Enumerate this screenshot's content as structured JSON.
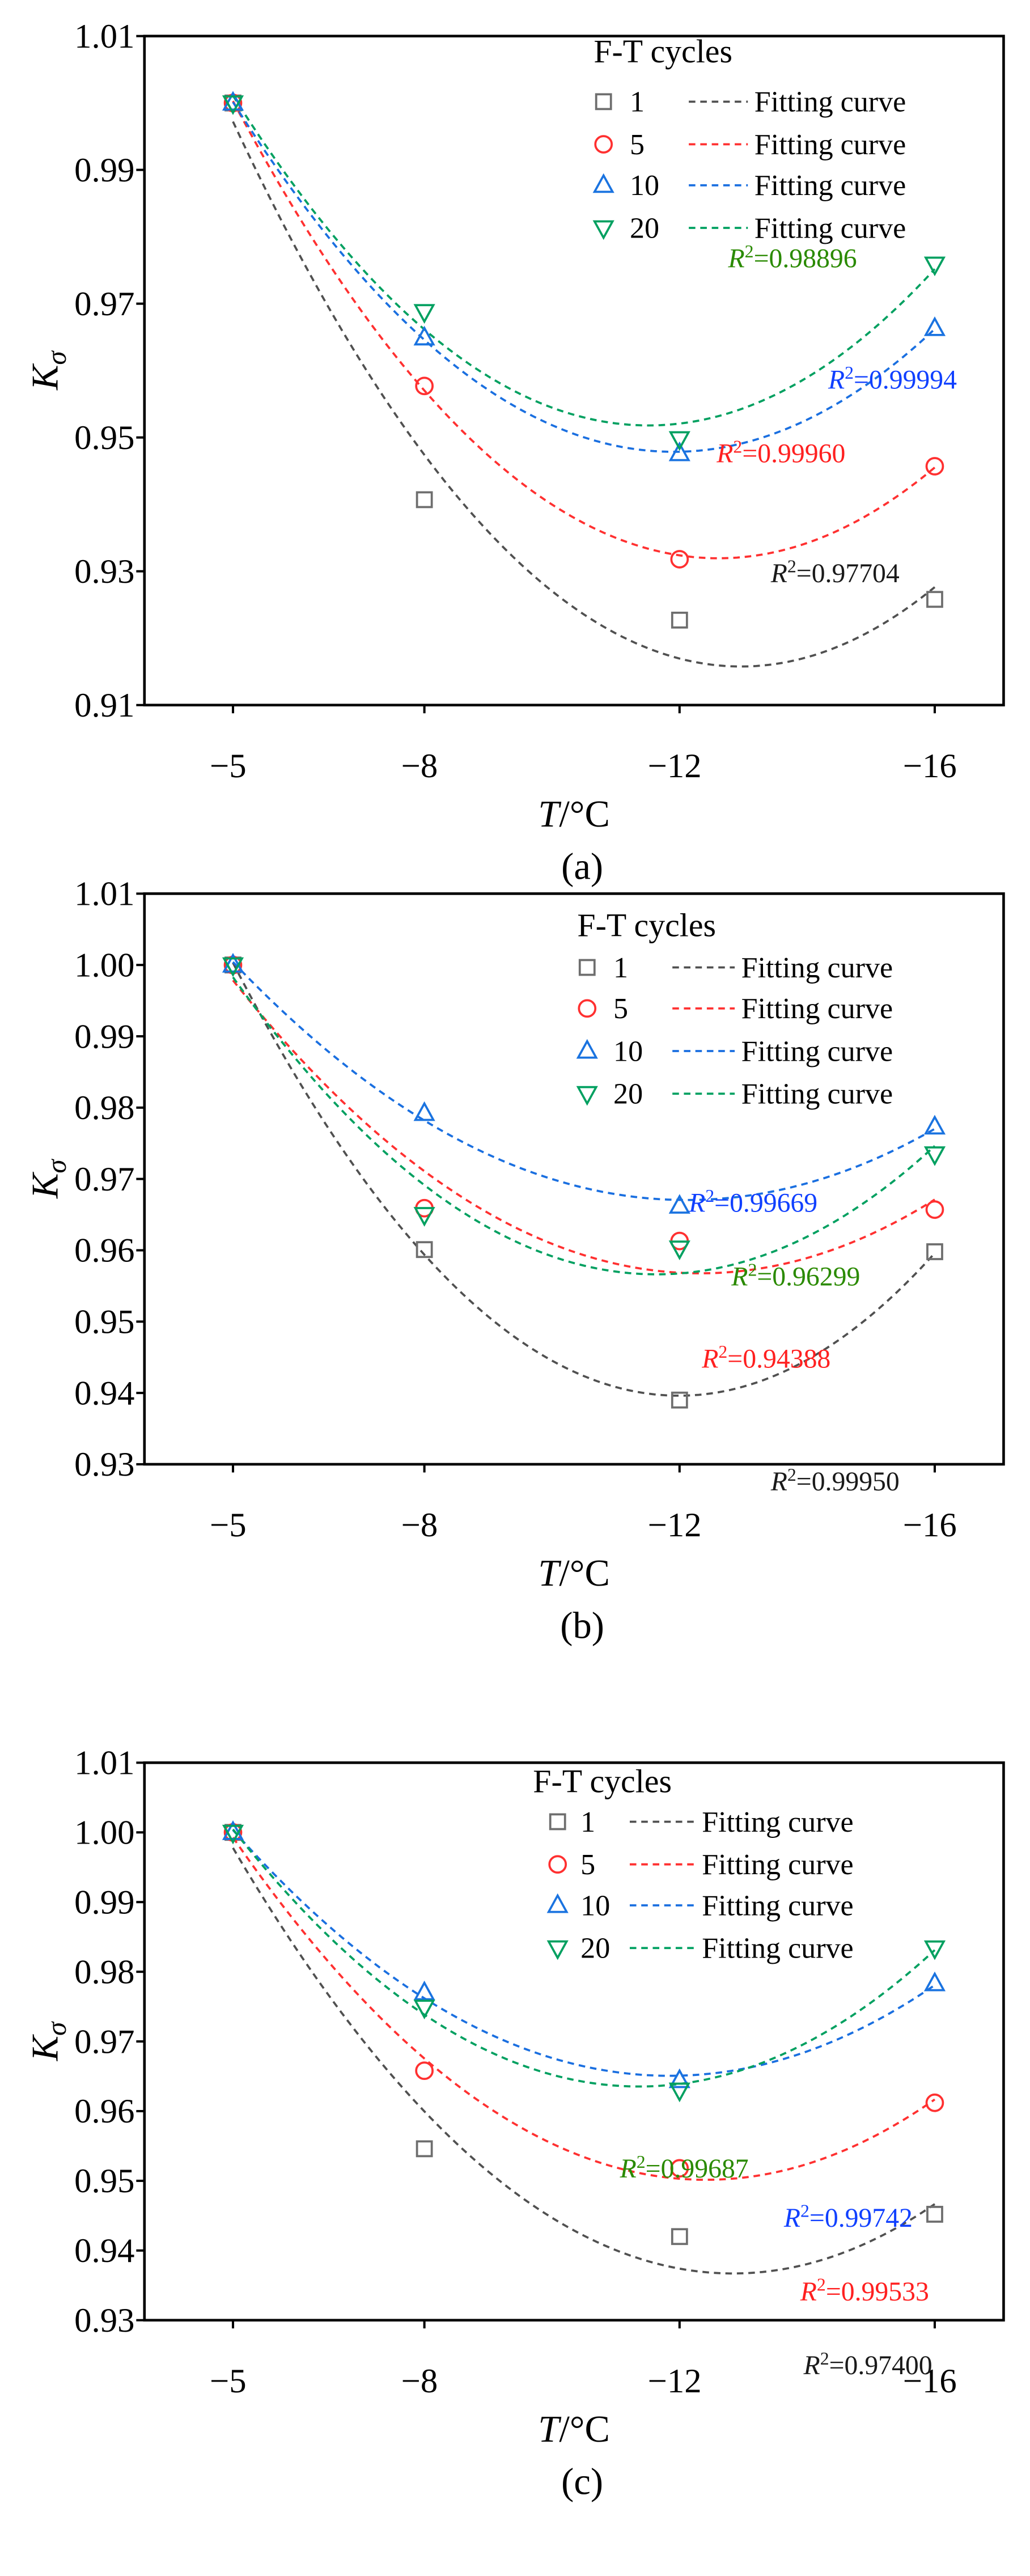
{
  "chart_data": [
    {
      "type": "scatter",
      "caption": "(a)",
      "xlabel_italic": "T",
      "xlabel_unit": "/°C",
      "ylabel_main": "K",
      "ylabel_sub": "σ",
      "x": [
        -5,
        -8,
        -12,
        -16
      ],
      "xtick_labels": [
        "−5",
        "−8",
        "−12",
        "−16"
      ],
      "ylim": [
        0.91,
        1.01
      ],
      "yticks": [
        0.91,
        0.93,
        0.95,
        0.97,
        0.99,
        1.01
      ],
      "ytick_labels": [
        "0.91",
        "0.93",
        "0.95",
        "0.97",
        "0.99",
        "1.01"
      ],
      "legend_title": "F-T cycles",
      "legend_placement": "top-right",
      "r2_symbol": "R",
      "r2_exp": "2",
      "series": [
        {
          "name": "1",
          "marker": "square",
          "fit_label": "Fitting curve",
          "values": [
            1.0,
            0.9407,
            0.9227,
            0.9258
          ],
          "r2": "=0.97704",
          "color": "#6e6e6e",
          "line_color": "#505050",
          "text_color": "#1a1a1a"
        },
        {
          "name": "5",
          "marker": "circle",
          "fit_label": "Fitting curve",
          "values": [
            1.0,
            0.9577,
            0.9318,
            0.9457
          ],
          "r2": "=0.99960",
          "color": "#ff3030",
          "line_color": "#ff3030",
          "text_color": "#ff2020"
        },
        {
          "name": "10",
          "marker": "triangle-up",
          "fit_label": "Fitting curve",
          "values": [
            1.0,
            0.9649,
            0.9476,
            0.9663
          ],
          "r2": "=0.99994",
          "color": "#1a73e0",
          "line_color": "#1a6fe0",
          "text_color": "#1040ff"
        },
        {
          "name": "20",
          "marker": "triangle-down",
          "fit_label": "Fitting curve",
          "values": [
            1.0,
            0.9688,
            0.9498,
            0.9759
          ],
          "r2": "=0.98896",
          "color": "#00a060",
          "line_color": "#00a060",
          "text_color": "#2a8a00"
        }
      ]
    },
    {
      "type": "scatter",
      "caption": "(b)",
      "xlabel_italic": "T",
      "xlabel_unit": "/°C",
      "ylabel_main": "K",
      "ylabel_sub": "σ",
      "x": [
        -5,
        -8,
        -12,
        -16
      ],
      "xtick_labels": [
        "−5",
        "−8",
        "−12",
        "−16"
      ],
      "ylim": [
        0.93,
        1.01
      ],
      "yticks": [
        0.93,
        0.94,
        0.95,
        0.96,
        0.97,
        0.98,
        0.99,
        1.0,
        1.01
      ],
      "ytick_labels": [
        "0.93",
        "0.94",
        "0.95",
        "0.96",
        "0.97",
        "0.98",
        "0.99",
        "1.00",
        "1.01"
      ],
      "legend_title": "F-T cycles",
      "legend_placement": "top-right",
      "r2_symbol": "R",
      "r2_exp": "2",
      "series": [
        {
          "name": "1",
          "marker": "square",
          "fit_label": "Fitting curve",
          "values": [
            1.0,
            0.9601,
            0.939,
            0.9598
          ],
          "r2": "=0.99950",
          "color": "#6e6e6e",
          "line_color": "#505050",
          "text_color": "#1a1a1a"
        },
        {
          "name": "5",
          "marker": "circle",
          "fit_label": "Fitting curve",
          "values": [
            1.0,
            0.9659,
            0.9613,
            0.9657
          ],
          "r2": "=0.94388",
          "color": "#ff3030",
          "line_color": "#ff3030",
          "text_color": "#ff2020"
        },
        {
          "name": "10",
          "marker": "triangle-up",
          "fit_label": "Fitting curve",
          "values": [
            1.0,
            0.9792,
            0.9662,
            0.9773
          ],
          "r2": "=0.99669",
          "color": "#1a73e0",
          "line_color": "#1a6fe0",
          "text_color": "#1040ff"
        },
        {
          "name": "20",
          "marker": "triangle-down",
          "fit_label": "Fitting curve",
          "values": [
            1.0,
            0.965,
            0.9603,
            0.9735
          ],
          "r2": "=0.96299",
          "color": "#00a060",
          "line_color": "#00a060",
          "text_color": "#2a8a00"
        }
      ]
    },
    {
      "type": "scatter",
      "caption": "(c)",
      "xlabel_italic": "T",
      "xlabel_unit": "/°C",
      "ylabel_main": "K",
      "ylabel_sub": "σ",
      "x": [
        -5,
        -8,
        -12,
        -16
      ],
      "xtick_labels": [
        "−5",
        "−8",
        "−12",
        "−16"
      ],
      "ylim": [
        0.93,
        1.01
      ],
      "yticks": [
        0.93,
        0.94,
        0.95,
        0.96,
        0.97,
        0.98,
        0.99,
        1.0,
        1.01
      ],
      "ytick_labels": [
        "0.93",
        "0.94",
        "0.95",
        "0.96",
        "0.97",
        "0.98",
        "0.99",
        "1.00",
        "1.01"
      ],
      "legend_title": "F-T cycles",
      "legend_placement": "top-right",
      "r2_symbol": "R",
      "r2_exp": "2",
      "series": [
        {
          "name": "1",
          "marker": "square",
          "fit_label": "Fitting curve",
          "values": [
            1.0,
            0.9546,
            0.942,
            0.9452
          ],
          "r2": "=0.97400",
          "color": "#6e6e6e",
          "line_color": "#505050",
          "text_color": "#1a1a1a"
        },
        {
          "name": "5",
          "marker": "circle",
          "fit_label": "Fitting curve",
          "values": [
            1.0,
            0.9658,
            0.9518,
            0.9612
          ],
          "r2": "=0.99533",
          "color": "#ff3030",
          "line_color": "#ff3030",
          "text_color": "#ff2020"
        },
        {
          "name": "10",
          "marker": "triangle-up",
          "fit_label": "Fitting curve",
          "values": [
            1.0,
            0.977,
            0.9644,
            0.9783
          ],
          "r2": "=0.99742",
          "color": "#1a73e0",
          "line_color": "#1a6fe0",
          "text_color": "#1040ff"
        },
        {
          "name": "20",
          "marker": "triangle-down",
          "fit_label": "Fitting curve",
          "values": [
            1.0,
            0.9749,
            0.963,
            0.9834
          ],
          "r2": "=0.99687",
          "color": "#00a060",
          "line_color": "#00a060",
          "text_color": "#2a8a00"
        }
      ]
    }
  ]
}
